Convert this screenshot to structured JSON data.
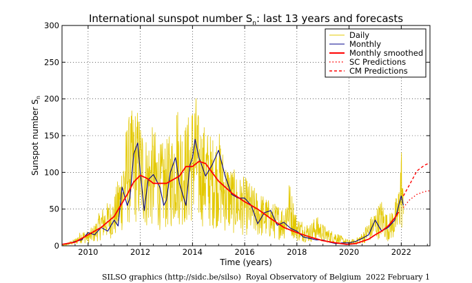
{
  "footer": "SILSO graphics (http://sidc.be/silso)  Royal Observatory of Belgium  2022 February 1",
  "chart_data": {
    "type": "line",
    "title_main": "International sunspot number S",
    "title_sub": "n",
    "title_rest": ": last 13 years and forecasts",
    "xlabel": "Time (years)",
    "ylabel_main": "Sunspot number S",
    "ylabel_sub": "n",
    "xlim": [
      2009.0,
      2023.1
    ],
    "ylim": [
      0,
      300
    ],
    "xticks": [
      2010,
      2012,
      2014,
      2016,
      2018,
      2020,
      2022
    ],
    "yticks": [
      0,
      50,
      100,
      150,
      200,
      250,
      300
    ],
    "grid": true,
    "legend_position": "top-right",
    "colors": {
      "daily": "#e3c800",
      "monthly": "#00008b",
      "smoothed": "#ff0000",
      "sc": "#ff0000",
      "cm": "#ff0000"
    },
    "series": [
      {
        "name": "Daily",
        "style": "solid-thin",
        "x": [
          2009.0,
          2009.25,
          2009.5,
          2009.75,
          2010.0,
          2010.25,
          2010.5,
          2010.75,
          2011.0,
          2011.25,
          2011.5,
          2011.75,
          2011.85,
          2012.0,
          2012.25,
          2012.5,
          2012.75,
          2013.0,
          2013.25,
          2013.4,
          2013.5,
          2013.75,
          2014.0,
          2014.1,
          2014.25,
          2014.5,
          2014.75,
          2015.0,
          2015.25,
          2015.5,
          2015.75,
          2016.0,
          2016.25,
          2016.5,
          2016.75,
          2017.0,
          2017.25,
          2017.5,
          2017.7,
          2018.0,
          2018.25,
          2018.5,
          2018.75,
          2019.0,
          2019.25,
          2019.5,
          2019.75,
          2020.0,
          2020.25,
          2020.5,
          2020.75,
          2021.0,
          2021.25,
          2021.5,
          2021.75,
          2021.9,
          2022.0,
          2022.08
        ],
        "y": [
          0,
          5,
          10,
          22,
          20,
          30,
          52,
          60,
          68,
          110,
          175,
          190,
          192,
          180,
          150,
          165,
          140,
          145,
          160,
          205,
          180,
          170,
          200,
          218,
          175,
          165,
          150,
          160,
          120,
          110,
          95,
          95,
          85,
          75,
          70,
          60,
          58,
          55,
          92,
          40,
          35,
          30,
          42,
          30,
          22,
          20,
          12,
          8,
          10,
          18,
          35,
          50,
          65,
          40,
          60,
          80,
          150,
          70
        ]
      },
      {
        "name": "Monthly",
        "style": "solid",
        "x": [
          2009.0,
          2009.25,
          2009.5,
          2009.75,
          2010.0,
          2010.25,
          2010.5,
          2010.75,
          2011.0,
          2011.15,
          2011.3,
          2011.5,
          2011.6,
          2011.75,
          2011.9,
          2012.0,
          2012.15,
          2012.3,
          2012.5,
          2012.75,
          2012.9,
          2013.0,
          2013.15,
          2013.35,
          2013.5,
          2013.75,
          2013.9,
          2014.0,
          2014.1,
          2014.25,
          2014.5,
          2014.75,
          2015.0,
          2015.25,
          2015.5,
          2015.75,
          2016.0,
          2016.25,
          2016.5,
          2016.75,
          2017.0,
          2017.25,
          2017.5,
          2017.75,
          2018.0,
          2018.25,
          2018.5,
          2018.75,
          2019.0,
          2019.25,
          2019.5,
          2019.75,
          2020.0,
          2020.25,
          2020.5,
          2020.75,
          2021.0,
          2021.25,
          2021.5,
          2021.75,
          2021.85,
          2022.0,
          2022.08
        ],
        "y": [
          2,
          3,
          6,
          8,
          18,
          15,
          25,
          20,
          35,
          27,
          80,
          55,
          65,
          125,
          140,
          100,
          48,
          90,
          97,
          80,
          55,
          62,
          100,
          120,
          85,
          55,
          110,
          120,
          145,
          120,
          95,
          110,
          130,
          95,
          70,
          65,
          65,
          55,
          30,
          45,
          48,
          28,
          32,
          24,
          20,
          12,
          10,
          8,
          8,
          5,
          3,
          4,
          4,
          6,
          10,
          15,
          35,
          20,
          25,
          35,
          48,
          68,
          55
        ]
      },
      {
        "name": "Monthly smoothed",
        "style": "solid-thick",
        "x": [
          2009.0,
          2009.5,
          2010.0,
          2010.5,
          2011.0,
          2011.5,
          2011.75,
          2012.0,
          2012.25,
          2012.5,
          2012.75,
          2013.0,
          2013.5,
          2013.75,
          2014.0,
          2014.25,
          2014.5,
          2014.75,
          2015.0,
          2015.5,
          2016.0,
          2016.5,
          2017.0,
          2017.5,
          2018.0,
          2018.5,
          2019.0,
          2019.5,
          2019.9,
          2020.25,
          2020.5,
          2020.75,
          2021.0,
          2021.25,
          2021.5,
          2021.75,
          2021.9
        ],
        "y": [
          2,
          5,
          15,
          25,
          40,
          70,
          87,
          96,
          92,
          85,
          85,
          85,
          95,
          108,
          108,
          115,
          112,
          100,
          88,
          72,
          60,
          50,
          37,
          25,
          18,
          12,
          7,
          4,
          2,
          3,
          6,
          9,
          15,
          20,
          27,
          38,
          46
        ]
      },
      {
        "name": "SC Predictions",
        "style": "dotted",
        "x": [
          2022.08,
          2022.3,
          2022.6,
          2022.9,
          2023.1
        ],
        "y": [
          52,
          62,
          70,
          74,
          75
        ]
      },
      {
        "name": "CM Predictions",
        "style": "dashed",
        "x": [
          2022.08,
          2022.3,
          2022.6,
          2022.9,
          2023.1
        ],
        "y": [
          68,
          82,
          102,
          110,
          113
        ]
      }
    ]
  }
}
